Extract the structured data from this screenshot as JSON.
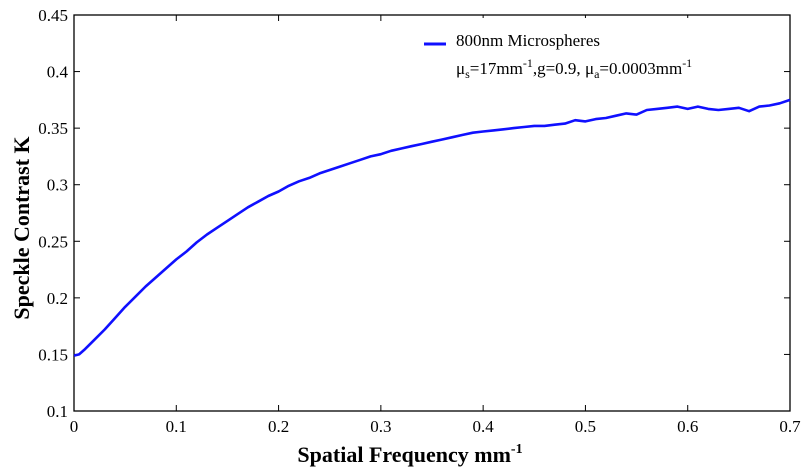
{
  "chart_data": {
    "type": "line",
    "xlabel": "Spatial Frequency mm",
    "xlabel_sup": "-1",
    "ylabel": "Speckle Contrast K",
    "xlim": [
      0,
      0.7
    ],
    "ylim": [
      0.1,
      0.45
    ],
    "xticks": [
      "0",
      "0.1",
      "0.2",
      "0.3",
      "0.4",
      "0.5",
      "0.6",
      "0.7"
    ],
    "yticks": [
      "0.1",
      "0.15",
      "0.2",
      "0.25",
      "0.3",
      "0.35",
      "0.4",
      "0.45"
    ],
    "grid": false,
    "legend_position": "top-right",
    "legend": {
      "title": "800nm Microspheres",
      "mu_s_symbol": "μ",
      "mu_s_sub": "s",
      "mu_s_value": "=17mm",
      "mu_s_sup": "-1",
      "g_text": ",g=0.9, ",
      "mu_a_symbol": "μ",
      "mu_a_sub": "a",
      "mu_a_value": "=0.0003mm",
      "mu_a_sup": "-1"
    },
    "series": [
      {
        "name": "800nm Microspheres",
        "color": "#1010ff",
        "x": [
          0,
          0.005,
          0.01,
          0.02,
          0.03,
          0.04,
          0.05,
          0.06,
          0.07,
          0.08,
          0.09,
          0.1,
          0.11,
          0.12,
          0.13,
          0.14,
          0.15,
          0.16,
          0.17,
          0.18,
          0.19,
          0.2,
          0.21,
          0.22,
          0.23,
          0.24,
          0.25,
          0.26,
          0.27,
          0.28,
          0.29,
          0.3,
          0.31,
          0.32,
          0.33,
          0.34,
          0.35,
          0.36,
          0.37,
          0.38,
          0.39,
          0.4,
          0.41,
          0.42,
          0.43,
          0.44,
          0.45,
          0.46,
          0.47,
          0.48,
          0.49,
          0.5,
          0.51,
          0.52,
          0.53,
          0.54,
          0.55,
          0.56,
          0.57,
          0.58,
          0.59,
          0.6,
          0.61,
          0.62,
          0.63,
          0.64,
          0.65,
          0.66,
          0.67,
          0.68,
          0.69,
          0.7
        ],
        "y": [
          0.149,
          0.15,
          0.154,
          0.163,
          0.172,
          0.182,
          0.192,
          0.201,
          0.21,
          0.218,
          0.226,
          0.234,
          0.241,
          0.249,
          0.256,
          0.262,
          0.268,
          0.274,
          0.28,
          0.285,
          0.29,
          0.294,
          0.299,
          0.303,
          0.306,
          0.31,
          0.313,
          0.316,
          0.319,
          0.322,
          0.325,
          0.327,
          0.33,
          0.332,
          0.334,
          0.336,
          0.338,
          0.34,
          0.342,
          0.344,
          0.346,
          0.347,
          0.348,
          0.349,
          0.35,
          0.351,
          0.352,
          0.352,
          0.353,
          0.354,
          0.357,
          0.356,
          0.358,
          0.359,
          0.361,
          0.363,
          0.362,
          0.366,
          0.367,
          0.368,
          0.369,
          0.367,
          0.369,
          0.367,
          0.366,
          0.367,
          0.368,
          0.365,
          0.369,
          0.37,
          0.372,
          0.375
        ]
      }
    ]
  }
}
